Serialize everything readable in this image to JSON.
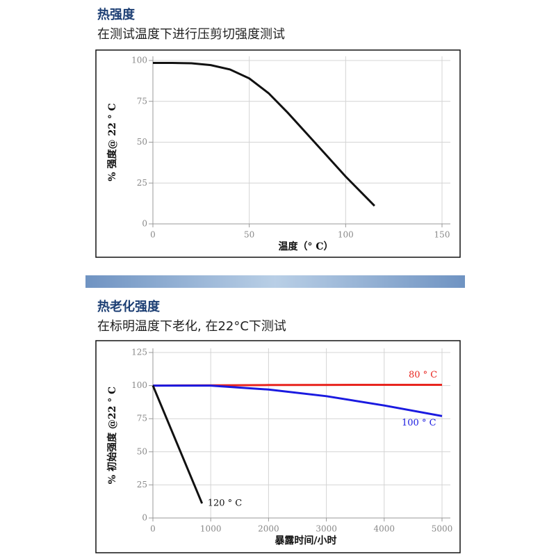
{
  "chart_data": [
    {
      "type": "line",
      "title": "热强度",
      "subtitle": "在测试温度下进行压剪切强度测试",
      "x_label": "温度（° C）",
      "y_label": "% 强度@ 22 ° C",
      "xlim": [
        0,
        150
      ],
      "xticks": [
        0,
        50,
        100,
        150
      ],
      "ylim": [
        0,
        100
      ],
      "yticks": [
        0,
        25,
        50,
        75,
        100
      ],
      "grid": true,
      "series": [
        {
          "color": "#111111",
          "x": [
            0,
            10,
            20,
            30,
            40,
            50,
            60,
            70,
            80,
            90,
            100,
            110,
            115
          ],
          "values": [
            98.5,
            98.5,
            98.3,
            97.2,
            94.5,
            89,
            80,
            68,
            55,
            42,
            29,
            17,
            11
          ]
        }
      ]
    },
    {
      "type": "line",
      "title": "热老化强度",
      "subtitle": "在标明温度下老化, 在22°C下测试",
      "x_label": "暴露时间/小时",
      "y_label": "% 初始强度  @22 ° C",
      "xlim": [
        0,
        5000
      ],
      "xticks": [
        0,
        1000,
        2000,
        3000,
        4000,
        5000
      ],
      "ylim": [
        0,
        125
      ],
      "yticks": [
        0,
        25,
        50,
        75,
        100,
        125
      ],
      "grid": true,
      "series": [
        {
          "name": "80 ° C",
          "color": "#e8251f",
          "x": [
            0,
            1000,
            2000,
            3000,
            4000,
            5000
          ],
          "values": [
            100,
            100.2,
            100.4,
            100.5,
            100.6,
            100.6
          ]
        },
        {
          "name": "100 ° C",
          "color": "#1a1ae0",
          "x": [
            0,
            1000,
            2000,
            3000,
            4000,
            5000
          ],
          "values": [
            100,
            100,
            97,
            92,
            85,
            77
          ]
        },
        {
          "name": "120 ° C",
          "color": "#111111",
          "x": [
            0,
            850
          ],
          "values": [
            100,
            11
          ]
        }
      ]
    }
  ]
}
